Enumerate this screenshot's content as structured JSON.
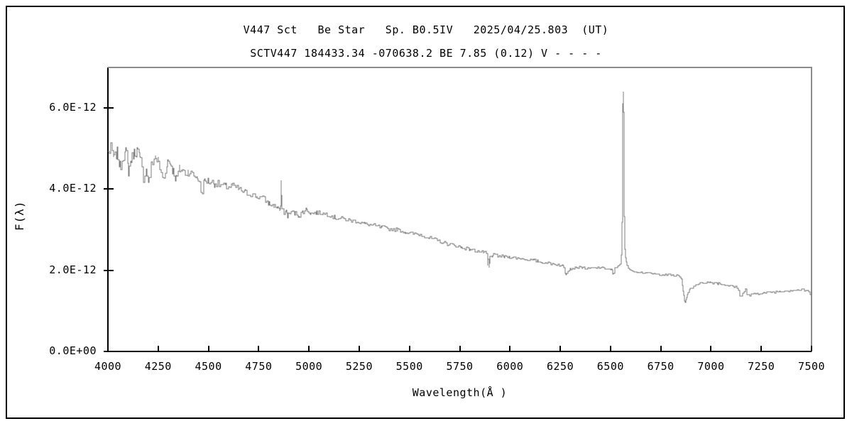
{
  "chart_data": {
    "type": "line",
    "title": "V447 Sct   Be Star   Sp. B0.5IV   2025/04/25.803  (UT)",
    "subtitle": "SCTV447 184433.34 -070638.2 BE 7.85 (0.12) V - - - -",
    "xlabel": "Wavelength(Å )",
    "ylabel": "F(λ)",
    "xlim": [
      4000,
      7500
    ],
    "ylim_e12": [
      0,
      7
    ],
    "grid": false,
    "legend": "none",
    "xticks": [
      4000,
      4250,
      4500,
      4750,
      5000,
      5250,
      5500,
      5750,
      6000,
      6250,
      6500,
      6750,
      7000,
      7250,
      7500
    ],
    "yticks": [
      {
        "value_e12": 0,
        "label": "0.0E+00"
      },
      {
        "value_e12": 2,
        "label": "2.0E-12"
      },
      {
        "value_e12": 4,
        "label": "4.0E-12"
      },
      {
        "value_e12": 6,
        "label": "6.0E-12"
      }
    ],
    "flux_exponent": -12,
    "line_color": "#7f7f7f",
    "axis_color_left_bottom": "#000000",
    "axis_color_top_right": "#8c8c8c",
    "series": [
      {
        "name": "spectrum",
        "points_e12": [
          [
            4000,
            4.9
          ],
          [
            4015,
            5.0
          ],
          [
            4030,
            4.75
          ],
          [
            4045,
            4.9
          ],
          [
            4060,
            4.55
          ],
          [
            4075,
            4.82
          ],
          [
            4090,
            4.9
          ],
          [
            4101,
            4.45
          ],
          [
            4115,
            4.75
          ],
          [
            4130,
            4.9
          ],
          [
            4145,
            4.95
          ],
          [
            4160,
            4.7
          ],
          [
            4175,
            4.3
          ],
          [
            4190,
            4.45
          ],
          [
            4205,
            4.2
          ],
          [
            4220,
            4.65
          ],
          [
            4235,
            4.8
          ],
          [
            4250,
            4.7
          ],
          [
            4265,
            4.4
          ],
          [
            4280,
            4.25
          ],
          [
            4295,
            4.7
          ],
          [
            4310,
            4.65
          ],
          [
            4325,
            4.45
          ],
          [
            4340,
            4.25
          ],
          [
            4355,
            4.5
          ],
          [
            4370,
            4.45
          ],
          [
            4385,
            4.4
          ],
          [
            4400,
            4.45
          ],
          [
            4420,
            4.35
          ],
          [
            4445,
            4.3
          ],
          [
            4465,
            3.9
          ],
          [
            4480,
            4.22
          ],
          [
            4500,
            4.2
          ],
          [
            4530,
            4.15
          ],
          [
            4560,
            4.1
          ],
          [
            4590,
            4.05
          ],
          [
            4620,
            4.08
          ],
          [
            4650,
            4.0
          ],
          [
            4680,
            3.92
          ],
          [
            4710,
            3.88
          ],
          [
            4740,
            3.82
          ],
          [
            4770,
            3.78
          ],
          [
            4800,
            3.65
          ],
          [
            4825,
            3.58
          ],
          [
            4845,
            3.55
          ],
          [
            4855,
            3.45
          ],
          [
            4859,
            3.6
          ],
          [
            4861,
            4.15
          ],
          [
            4863,
            3.9
          ],
          [
            4867,
            3.5
          ],
          [
            4875,
            3.42
          ],
          [
            4885,
            3.45
          ],
          [
            4895,
            3.35
          ],
          [
            4910,
            3.45
          ],
          [
            4930,
            3.4
          ],
          [
            4950,
            3.35
          ],
          [
            4970,
            3.45
          ],
          [
            4990,
            3.5
          ],
          [
            5010,
            3.4
          ],
          [
            5040,
            3.42
          ],
          [
            5070,
            3.4
          ],
          [
            5100,
            3.37
          ],
          [
            5130,
            3.3
          ],
          [
            5160,
            3.28
          ],
          [
            5200,
            3.24
          ],
          [
            5240,
            3.2
          ],
          [
            5280,
            3.14
          ],
          [
            5320,
            3.1
          ],
          [
            5360,
            3.06
          ],
          [
            5400,
            3.02
          ],
          [
            5440,
            3.0
          ],
          [
            5480,
            2.94
          ],
          [
            5520,
            2.9
          ],
          [
            5560,
            2.88
          ],
          [
            5600,
            2.8
          ],
          [
            5640,
            2.73
          ],
          [
            5680,
            2.66
          ],
          [
            5720,
            2.62
          ],
          [
            5760,
            2.56
          ],
          [
            5800,
            2.52
          ],
          [
            5840,
            2.47
          ],
          [
            5870,
            2.44
          ],
          [
            5884,
            2.4
          ],
          [
            5888,
            2.1
          ],
          [
            5891,
            2.25
          ],
          [
            5895,
            2.06
          ],
          [
            5900,
            2.32
          ],
          [
            5915,
            2.38
          ],
          [
            5940,
            2.36
          ],
          [
            5970,
            2.34
          ],
          [
            6000,
            2.33
          ],
          [
            6040,
            2.3
          ],
          [
            6080,
            2.27
          ],
          [
            6120,
            2.24
          ],
          [
            6160,
            2.2
          ],
          [
            6200,
            2.17
          ],
          [
            6240,
            2.14
          ],
          [
            6265,
            2.1
          ],
          [
            6278,
            1.91
          ],
          [
            6288,
            2.0
          ],
          [
            6300,
            2.04
          ],
          [
            6330,
            2.07
          ],
          [
            6360,
            2.06
          ],
          [
            6390,
            2.04
          ],
          [
            6420,
            2.06
          ],
          [
            6450,
            2.07
          ],
          [
            6475,
            2.04
          ],
          [
            6505,
            2.02
          ],
          [
            6512,
            1.9
          ],
          [
            6520,
            2.05
          ],
          [
            6535,
            2.08
          ],
          [
            6548,
            2.15
          ],
          [
            6555,
            2.4
          ],
          [
            6558,
            3.2
          ],
          [
            6561,
            5.8
          ],
          [
            6563,
            6.4
          ],
          [
            6565,
            5.9
          ],
          [
            6568,
            3.6
          ],
          [
            6572,
            2.5
          ],
          [
            6578,
            2.2
          ],
          [
            6588,
            2.05
          ],
          [
            6605,
            1.98
          ],
          [
            6640,
            1.96
          ],
          [
            6680,
            1.93
          ],
          [
            6720,
            1.91
          ],
          [
            6760,
            1.89
          ],
          [
            6800,
            1.88
          ],
          [
            6835,
            1.86
          ],
          [
            6852,
            1.78
          ],
          [
            6860,
            1.5
          ],
          [
            6868,
            1.22
          ],
          [
            6875,
            1.28
          ],
          [
            6882,
            1.42
          ],
          [
            6895,
            1.55
          ],
          [
            6915,
            1.62
          ],
          [
            6940,
            1.67
          ],
          [
            6970,
            1.7
          ],
          [
            7000,
            1.7
          ],
          [
            7035,
            1.68
          ],
          [
            7070,
            1.64
          ],
          [
            7105,
            1.61
          ],
          [
            7130,
            1.57
          ],
          [
            7145,
            1.36
          ],
          [
            7158,
            1.43
          ],
          [
            7170,
            1.54
          ],
          [
            7180,
            1.42
          ],
          [
            7192,
            1.38
          ],
          [
            7210,
            1.41
          ],
          [
            7235,
            1.43
          ],
          [
            7265,
            1.45
          ],
          [
            7300,
            1.46
          ],
          [
            7340,
            1.48
          ],
          [
            7380,
            1.5
          ],
          [
            7420,
            1.51
          ],
          [
            7455,
            1.52
          ],
          [
            7480,
            1.49
          ],
          [
            7492,
            1.42
          ],
          [
            7500,
            1.48
          ]
        ]
      }
    ],
    "noise_model": {
      "seed": 7,
      "amplitude_e12": [
        [
          4000,
          0.14
        ],
        [
          4200,
          0.15
        ],
        [
          4400,
          0.12
        ],
        [
          4600,
          0.09
        ],
        [
          4800,
          0.07
        ],
        [
          5000,
          0.055
        ],
        [
          5200,
          0.05
        ],
        [
          5400,
          0.045
        ],
        [
          5600,
          0.05
        ],
        [
          5800,
          0.04
        ],
        [
          6000,
          0.035
        ],
        [
          6200,
          0.03
        ],
        [
          6450,
          0.025
        ],
        [
          6560,
          0.015
        ],
        [
          6700,
          0.02
        ],
        [
          6900,
          0.025
        ],
        [
          7100,
          0.028
        ],
        [
          7300,
          0.03
        ],
        [
          7500,
          0.03
        ]
      ]
    }
  }
}
